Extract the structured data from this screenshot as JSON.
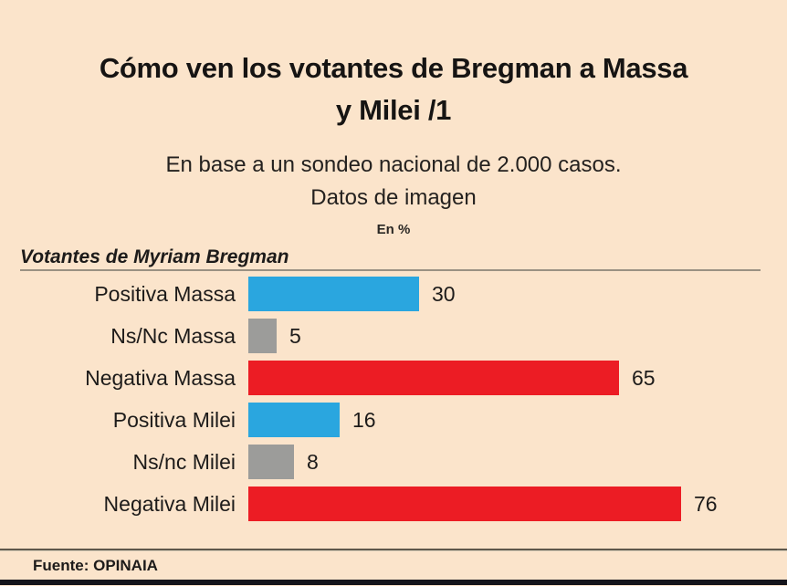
{
  "page": {
    "background": "#fbe4cb"
  },
  "header": {
    "title_line1": "Cómo ven los votantes de Bregman a Massa",
    "title_line2": "y Milei /1",
    "subtitle_line1": "En base a un sondeo nacional de 2.000 casos.",
    "subtitle_line2": "Datos de imagen",
    "unit_label": "En %"
  },
  "section": {
    "label": "Votantes de Myriam Bregman"
  },
  "footer": {
    "source": "Fuente: OPINAIA"
  },
  "colors": {
    "positive_bar": "#2aa6df",
    "neutral_bar": "#9c9c9a",
    "negative_bar": "#ec1c24",
    "background": "#fbe4cb",
    "bottom_strip": "#15151b"
  },
  "chart_data": {
    "type": "bar",
    "orientation": "horizontal",
    "title": "Cómo ven los votantes de Bregman a Massa y Milei /1",
    "subtitle": "En base a un sondeo nacional de 2.000 casos. Datos de imagen",
    "unit": "En %",
    "group_label": "Votantes de Myriam Bregman",
    "categories": [
      "Positiva Massa",
      "Ns/Nc Massa",
      "Negativa Massa",
      "Positiva Milei",
      "Ns/nc Milei",
      "Negativa Milei"
    ],
    "values": [
      30,
      5,
      65,
      16,
      8,
      76
    ],
    "bar_colors": [
      "#2aa6df",
      "#9c9c9a",
      "#ec1c24",
      "#2aa6df",
      "#9c9c9a",
      "#ec1c24"
    ],
    "xlim": [
      0,
      100
    ],
    "value_labels_shown": true,
    "grid": false,
    "legend": false,
    "source": "Fuente: OPINAIA"
  }
}
